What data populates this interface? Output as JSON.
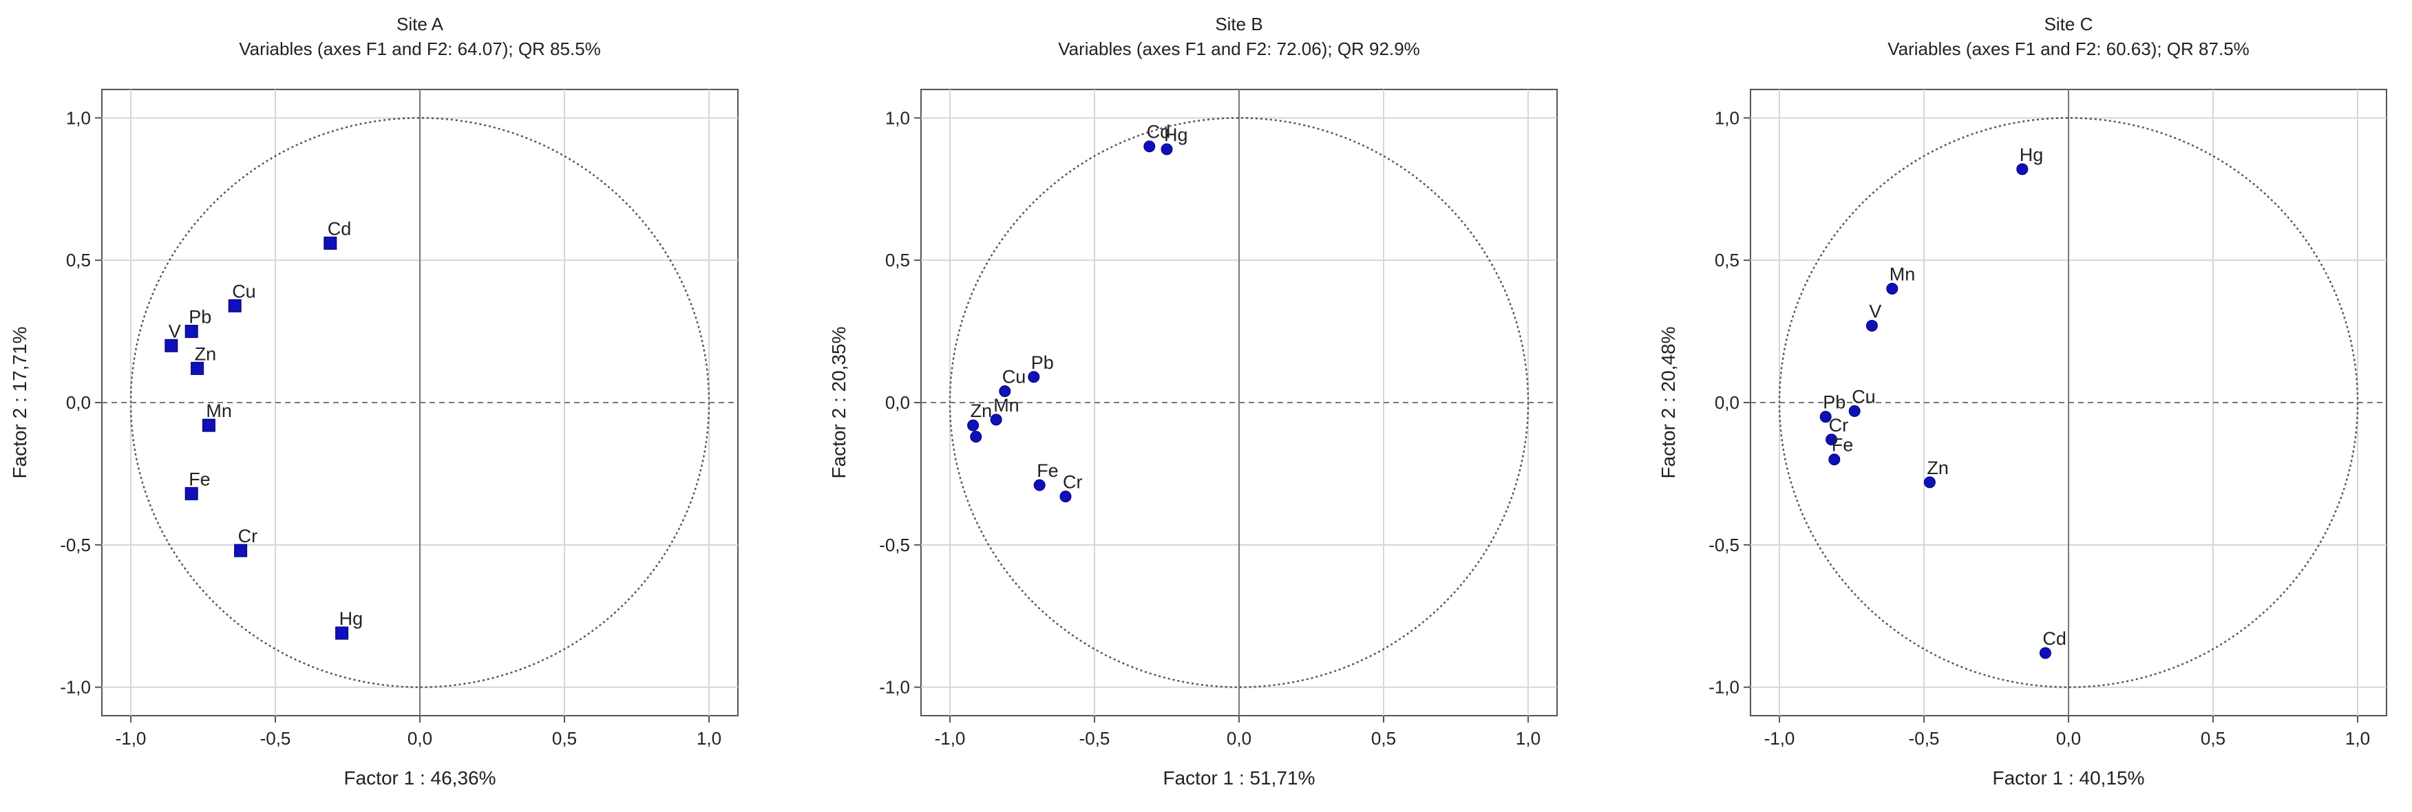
{
  "chart_data": [
    {
      "type": "scatter",
      "title": "Site A",
      "subtitle": "Variables (axes F1 and F2: 64.07); QR 85.5%",
      "xlabel": "Factor 1 : 46,36%",
      "ylabel": "Factor 2 : 17,71%",
      "xlim": [
        -1.1,
        1.1
      ],
      "ylim": [
        -1.1,
        1.1
      ],
      "xticks": [
        "-1,0",
        "-0,5",
        "0,0",
        "0,5",
        "1,0"
      ],
      "yticks": [
        "1,0",
        "0,5",
        "0,0",
        "-0,5",
        "-1,0"
      ],
      "grid": true,
      "marker": "square",
      "color": "#1010b8",
      "points": [
        {
          "label": "Cd",
          "x": -0.31,
          "y": 0.56
        },
        {
          "label": "Cu",
          "x": -0.64,
          "y": 0.34
        },
        {
          "label": "Pb",
          "x": -0.79,
          "y": 0.25
        },
        {
          "label": "V",
          "x": -0.86,
          "y": 0.2
        },
        {
          "label": "Zn",
          "x": -0.77,
          "y": 0.12
        },
        {
          "label": "Mn",
          "x": -0.73,
          "y": -0.08
        },
        {
          "label": "Fe",
          "x": -0.79,
          "y": -0.32
        },
        {
          "label": "Cr",
          "x": -0.62,
          "y": -0.52
        },
        {
          "label": "Hg",
          "x": -0.27,
          "y": -0.81
        }
      ]
    },
    {
      "type": "scatter",
      "title": "Site B",
      "subtitle": "Variables (axes F1 and F2: 72.06); QR 92.9%",
      "xlabel": "Factor 1 : 51,71%",
      "ylabel": "Factor 2 : 20,35%",
      "xlim": [
        -1.1,
        1.1
      ],
      "ylim": [
        -1.1,
        1.1
      ],
      "xticks": [
        "-1,0",
        "-0,5",
        "0,0",
        "0,5",
        "1,0"
      ],
      "yticks": [
        "1,0",
        "0,5",
        "0,0",
        "-0,5",
        "-1,0"
      ],
      "grid": true,
      "marker": "circle",
      "color": "#1010b8",
      "points": [
        {
          "label": "Cd",
          "x": -0.31,
          "y": 0.9
        },
        {
          "label": "Hg",
          "x": -0.25,
          "y": 0.89
        },
        {
          "label": "Pb",
          "x": -0.71,
          "y": 0.09
        },
        {
          "label": "Cu",
          "x": -0.81,
          "y": 0.04
        },
        {
          "label": "Zn",
          "x": -0.92,
          "y": -0.08
        },
        {
          "label": "",
          "x": -0.91,
          "y": -0.12
        },
        {
          "label": "Mn",
          "x": -0.84,
          "y": -0.06
        },
        {
          "label": "Fe",
          "x": -0.69,
          "y": -0.29
        },
        {
          "label": "Cr",
          "x": -0.6,
          "y": -0.33
        }
      ]
    },
    {
      "type": "scatter",
      "title": "Site C",
      "subtitle": "Variables (axes F1 and F2: 60.63); QR 87.5%",
      "xlabel": "Factor 1 : 40,15%",
      "ylabel": "Factor 2 : 20,48%",
      "xlim": [
        -1.1,
        1.1
      ],
      "ylim": [
        -1.1,
        1.1
      ],
      "xticks": [
        "-1,0",
        "-0,5",
        "0,0",
        "0,5",
        "1,0"
      ],
      "yticks": [
        "1,0",
        "0,5",
        "0,0",
        "-0,5",
        "-1,0"
      ],
      "grid": true,
      "marker": "circle",
      "color": "#1010b8",
      "points": [
        {
          "label": "Hg",
          "x": -0.16,
          "y": 0.82
        },
        {
          "label": "Mn",
          "x": -0.61,
          "y": 0.4
        },
        {
          "label": "V",
          "x": -0.68,
          "y": 0.27
        },
        {
          "label": "Pb",
          "x": -0.84,
          "y": -0.05
        },
        {
          "label": "Cu",
          "x": -0.74,
          "y": -0.03
        },
        {
          "label": "Cr",
          "x": -0.82,
          "y": -0.13
        },
        {
          "label": "Fe",
          "x": -0.81,
          "y": -0.2
        },
        {
          "label": "Zn",
          "x": -0.48,
          "y": -0.28
        },
        {
          "label": "Cd",
          "x": -0.08,
          "y": -0.88
        }
      ]
    }
  ]
}
